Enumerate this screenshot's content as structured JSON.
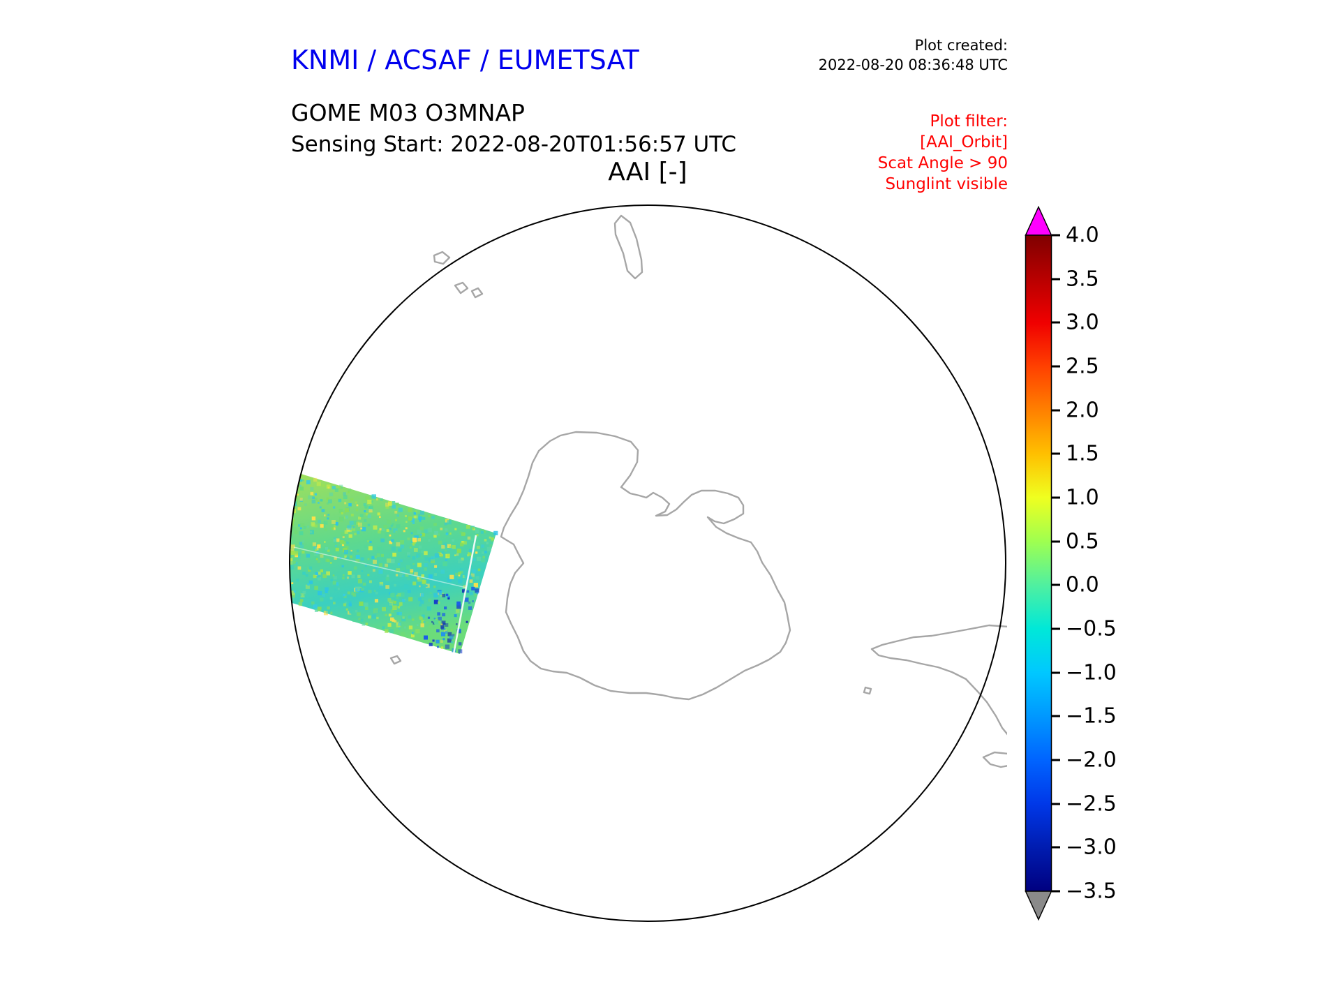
{
  "header": {
    "org_title": "KNMI / ACSAF / EUMETSAT",
    "org_title_color": "#0000ee",
    "plot_created_label": "Plot created:",
    "plot_created_time": "2022-08-20 08:36:48 UTC",
    "product_line1": "GOME M03 O3MNAP",
    "product_line2": "Sensing Start: 2022-08-20T01:56:57 UTC",
    "plot_title": "AAI [-]",
    "filter": {
      "color": "#ff0000",
      "lines": [
        "Plot filter:",
        "[AAI_Orbit]",
        "Scat Angle > 90",
        "Sunglint visible"
      ]
    }
  },
  "colorbar": {
    "ticks": [
      "4.0",
      "3.5",
      "3.0",
      "2.5",
      "2.0",
      "1.5",
      "1.0",
      "0.5",
      "0.0",
      "−0.5",
      "−1.0",
      "−1.5",
      "−2.0",
      "−2.5",
      "−3.0",
      "−3.5"
    ],
    "range": [
      -3.5,
      4.0
    ],
    "over_color": "#ff00ff",
    "under_color": "#8a8a8a",
    "gradient": [
      "#7f0000",
      "#b80000",
      "#f00000",
      "#ff4000",
      "#ff8000",
      "#ffc000",
      "#efff20",
      "#9fff50",
      "#50f0a0",
      "#00e8d8",
      "#00c8ff",
      "#0098ff",
      "#0064ff",
      "#0038e8",
      "#001cb0",
      "#000080"
    ]
  },
  "chart_data": {
    "type": "heatmap",
    "title": "AAI [-]",
    "subtitle": "GOME M03 O3MNAP, Sensing Start: 2022-08-20T01:56:57 UTC",
    "projection": "south polar view of Antarctica inside a circular boundary",
    "colorbar": {
      "label": "AAI [-]",
      "tick_values": [
        4.0,
        3.5,
        3.0,
        2.5,
        2.0,
        1.5,
        1.0,
        0.5,
        0.0,
        -0.5,
        -1.0,
        -1.5,
        -2.0,
        -2.5,
        -3.0,
        -3.5
      ],
      "range": [
        -3.5,
        4.0
      ],
      "colormap": "jet-like (dark red high to navy low)",
      "over_arrow_color": "#ff00ff",
      "under_arrow_color": "#8a8a8a"
    },
    "swath": {
      "description": "Single AAI orbit swath over the ocean west of the Antarctic Peninsula, left of the continent, tilted band touching the circular map edge",
      "approx_value_range": [
        -2.5,
        1.0
      ],
      "dominant_values": "mostly 0.0 to 0.5 (green/yellow-green) with cyan patches near -0.5 to -1.0 and dark blue speckles near -2 along the right swath edge",
      "gap_lines": "thin white scan gap line near the right swath edge"
    },
    "filters_applied": [
      "[AAI_Orbit]",
      "Scat Angle > 90",
      "Sunglint visible"
    ]
  }
}
